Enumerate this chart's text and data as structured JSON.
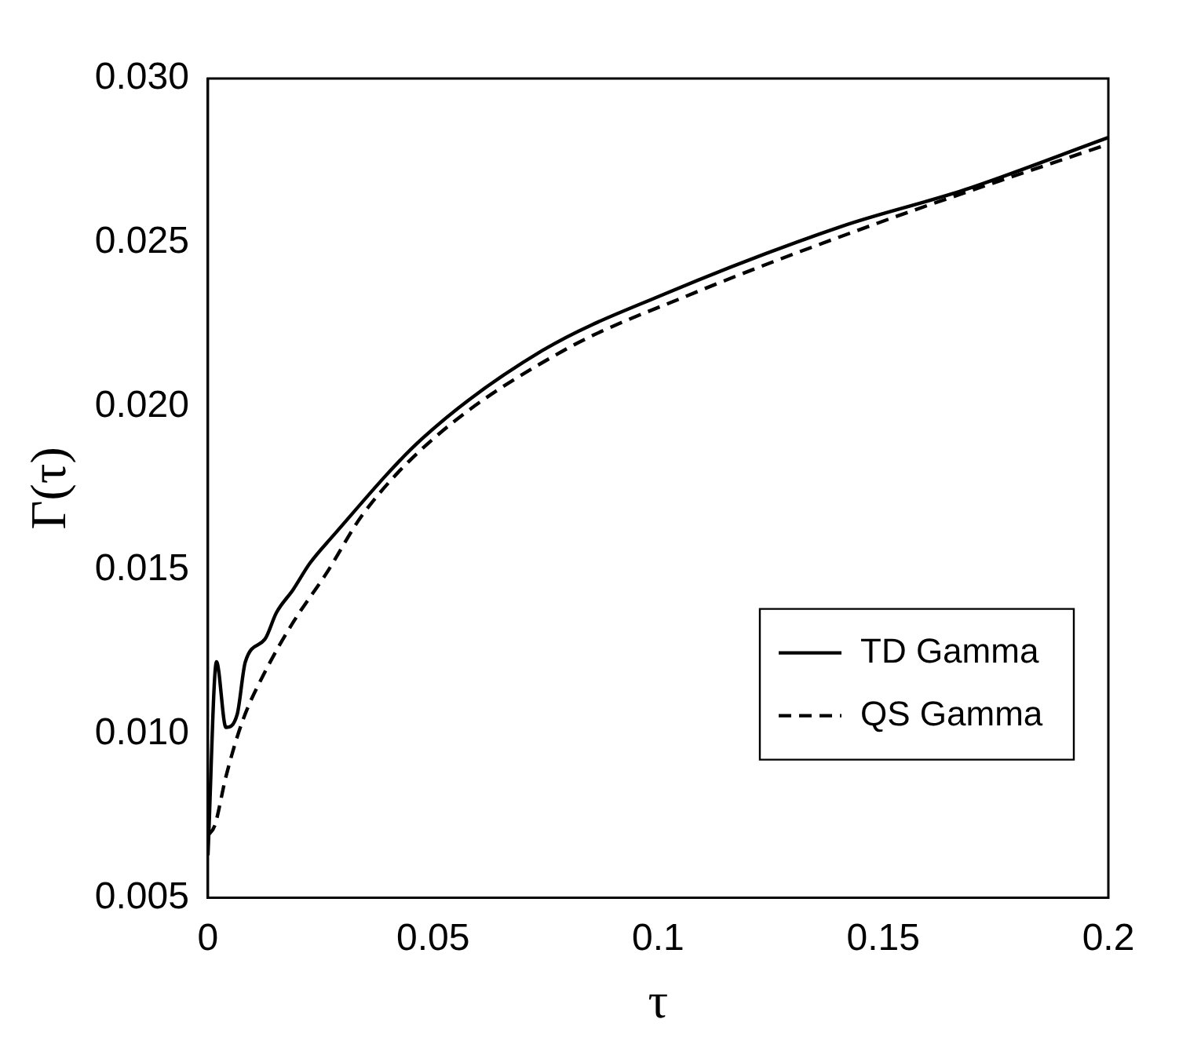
{
  "chart_data": {
    "type": "line",
    "xlabel": "τ",
    "ylabel": "Γ(τ)",
    "xlim": [
      0,
      0.2
    ],
    "ylim": [
      0.005,
      0.03
    ],
    "xticks": [
      0,
      0.05,
      0.1,
      0.15,
      0.2
    ],
    "yticks": [
      {
        "value": 0.005,
        "label": "0.005"
      },
      {
        "value": 0.01,
        "label": "0.010"
      },
      {
        "value": 0.015,
        "label": "0.015"
      },
      {
        "value": 0.02,
        "label": "0.020"
      },
      {
        "value": 0.025,
        "label": "0.025"
      },
      {
        "value": 0.03,
        "label": "0.030"
      }
    ],
    "grid": false,
    "legend": "bottom right",
    "marker": "none",
    "series": [
      {
        "name": "TD Gamma",
        "color": "#000000",
        "line_style": "solid",
        "x": [
          0,
          0.0019,
          0.004,
          0.0065,
          0.0083,
          0.0127,
          0.0152,
          0.0189,
          0.0226,
          0.0275,
          0.0475,
          0.0743,
          0.101,
          0.141,
          0.168,
          0.2
        ],
        "values": [
          0.0063,
          0.0122,
          0.0102,
          0.0106,
          0.0122,
          0.0129,
          0.0137,
          0.0144,
          0.0152,
          0.016,
          0.019,
          0.0217,
          0.0234,
          0.0255,
          0.0266,
          0.0282
        ]
      },
      {
        "name": "QS Gamma",
        "color": "#000000",
        "line_style": "dashed",
        "x": [
          0,
          0.0015,
          0.004,
          0.0077,
          0.0127,
          0.0189,
          0.0263,
          0.0344,
          0.05,
          0.079,
          0.107,
          0.147,
          0.2
        ],
        "values": [
          0.0069,
          0.0072,
          0.0087,
          0.0104,
          0.0119,
          0.0134,
          0.0149,
          0.0167,
          0.019,
          0.0217,
          0.0234,
          0.0255,
          0.028
        ]
      }
    ]
  }
}
